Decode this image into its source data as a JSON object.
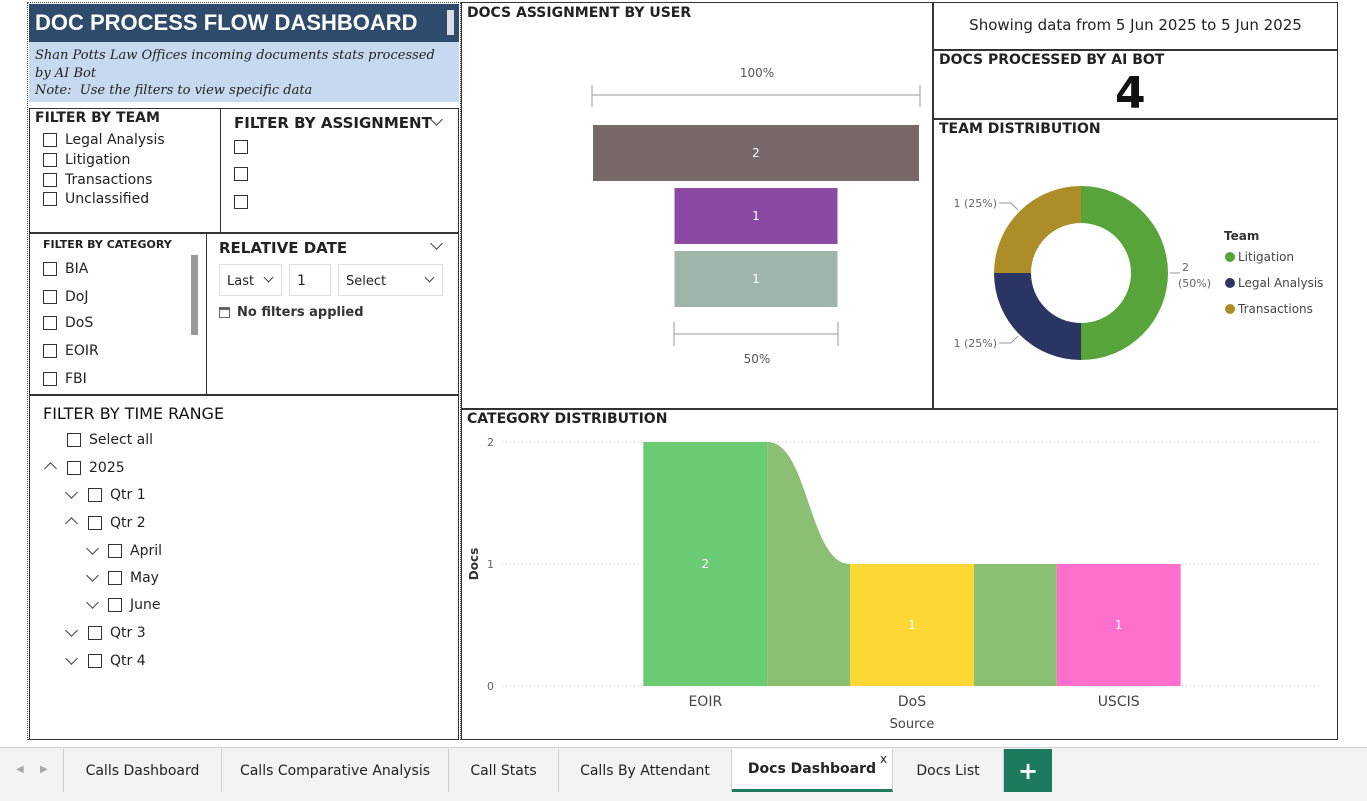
{
  "title": "DOC PROCESS FLOW DASHBOARD",
  "subtitle": "Shan Potts Law Offices incoming documents stats processed by AI Bot",
  "note": "Note:  Use the filters to view specific data",
  "filter_team": {
    "title": "FILTER BY TEAM",
    "items": [
      "Legal Analysis",
      "Litigation",
      "Transactions",
      "Unclassified"
    ]
  },
  "filter_assignment": {
    "title": "FILTER BY ASSIGNMENT"
  },
  "filter_category": {
    "title": "FILTER BY CATEGORY",
    "items": [
      "BIA",
      "DoJ",
      "DoS",
      "EOIR",
      "FBI"
    ]
  },
  "relative_date": {
    "title": "RELATIVE DATE",
    "mode": "Last",
    "count": "1",
    "unit": "Select",
    "status": "No filters applied"
  },
  "time_range": {
    "title": "FILTER BY TIME RANGE",
    "select_all": "Select all",
    "year": "2025",
    "q1": "Qtr 1",
    "q2": "Qtr 2",
    "april": "April",
    "may": "May",
    "june": "June",
    "q3": "Qtr 3",
    "q4": "Qtr 4"
  },
  "assignment_chart": {
    "title": "DOCS ASSIGNMENT BY USER",
    "top_label": "100%",
    "bottom_label": "50%"
  },
  "date_range": "Showing data from 5 Jun 2025 to 5 Jun 2025",
  "docs_processed": {
    "title": "DOCS PROCESSED BY AI BOT",
    "value": "4"
  },
  "team_distribution": {
    "title": "TEAM DISTRIBUTION",
    "legend_title": "Team"
  },
  "category_distribution": {
    "title": "CATEGORY DISTRIBUTION"
  },
  "tabs": [
    "Calls Dashboard",
    "Calls Comparative Analysis",
    "Call Stats",
    "Calls By Attendant",
    "Docs Dashboard",
    "Docs List"
  ],
  "active_tab": "Docs Dashboard",
  "add_tab_label": "+",
  "close_tab_label": "x",
  "chart_data": [
    {
      "type": "bar",
      "subtype": "funnel",
      "title": "DOCS ASSIGNMENT BY USER",
      "categories": [
        "",
        "",
        ""
      ],
      "values": [
        2,
        1,
        1
      ],
      "colors": [
        "#786868",
        "#8a4aa3",
        "#9fb5aa"
      ],
      "percent_labels": [
        "100%",
        "50%"
      ]
    },
    {
      "type": "pie",
      "subtype": "donut",
      "title": "TEAM DISTRIBUTION",
      "legend_title": "Team",
      "legend_position": "right",
      "series": [
        {
          "name": "Litigation",
          "value": 2,
          "label": "2 (50%)",
          "color": "#57a43a"
        },
        {
          "name": "Legal Analysis",
          "value": 1,
          "label": "1 (25%)",
          "color": "#2b3564"
        },
        {
          "name": "Transactions",
          "value": 1,
          "label": "1 (25%)",
          "color": "#ad8d27"
        }
      ]
    },
    {
      "type": "bar",
      "subtype": "ribbon",
      "title": "CATEGORY DISTRIBUTION",
      "xlabel": "Source",
      "ylabel": "Docs",
      "categories": [
        "EOIR",
        "DoS",
        "USCIS"
      ],
      "values": [
        2,
        1,
        1
      ],
      "colors": [
        "#6acb74",
        "#fdd835",
        "#ff6fcb"
      ],
      "ribbon_color": "#8bbf73",
      "ylim": [
        0,
        2
      ],
      "yticks": [
        "0",
        "1",
        "2"
      ]
    }
  ]
}
